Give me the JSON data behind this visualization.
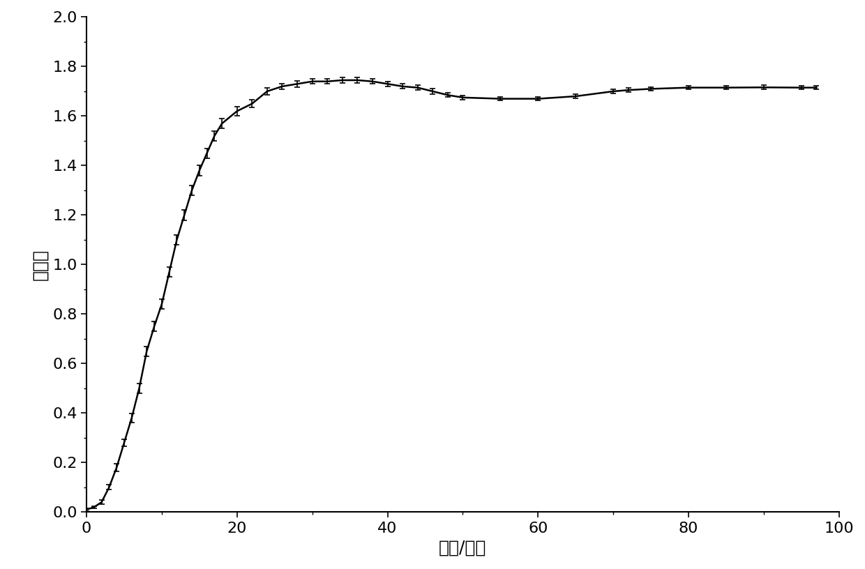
{
  "x": [
    0,
    1,
    2,
    3,
    4,
    5,
    6,
    7,
    8,
    9,
    10,
    11,
    12,
    13,
    14,
    15,
    16,
    17,
    18,
    20,
    22,
    24,
    26,
    28,
    30,
    32,
    34,
    36,
    38,
    40,
    42,
    44,
    46,
    48,
    50,
    55,
    60,
    65,
    70,
    72,
    75,
    80,
    85,
    90,
    95,
    97
  ],
  "y": [
    0.01,
    0.02,
    0.04,
    0.1,
    0.18,
    0.28,
    0.38,
    0.5,
    0.65,
    0.75,
    0.84,
    0.97,
    1.1,
    1.2,
    1.3,
    1.38,
    1.45,
    1.52,
    1.57,
    1.62,
    1.65,
    1.7,
    1.72,
    1.73,
    1.74,
    1.74,
    1.745,
    1.745,
    1.74,
    1.73,
    1.72,
    1.715,
    1.7,
    1.685,
    1.675,
    1.67,
    1.67,
    1.68,
    1.7,
    1.705,
    1.71,
    1.715,
    1.715,
    1.716,
    1.715,
    1.715
  ],
  "yerr": [
    0.005,
    0.005,
    0.008,
    0.01,
    0.015,
    0.015,
    0.018,
    0.02,
    0.02,
    0.02,
    0.02,
    0.02,
    0.02,
    0.02,
    0.02,
    0.02,
    0.02,
    0.02,
    0.02,
    0.018,
    0.015,
    0.015,
    0.012,
    0.012,
    0.01,
    0.01,
    0.01,
    0.01,
    0.01,
    0.01,
    0.01,
    0.01,
    0.01,
    0.008,
    0.008,
    0.008,
    0.008,
    0.008,
    0.008,
    0.008,
    0.008,
    0.008,
    0.008,
    0.008,
    0.008,
    0.008
  ],
  "xlabel": "时间/小时",
  "ylabel": "吸光度",
  "xlim": [
    0,
    100
  ],
  "ylim": [
    0,
    2.0
  ],
  "xticks": [
    0,
    20,
    40,
    60,
    80,
    100
  ],
  "yticks": [
    0,
    0.2,
    0.4,
    0.6,
    0.8,
    1.0,
    1.2,
    1.4,
    1.6,
    1.8,
    2.0
  ],
  "line_color": "#000000",
  "line_width": 1.8,
  "ecolor": "#000000",
  "capsize": 3,
  "error_linewidth": 1.2,
  "background_color": "#ffffff",
  "xlabel_fontsize": 18,
  "ylabel_fontsize": 18,
  "tick_fontsize": 16
}
